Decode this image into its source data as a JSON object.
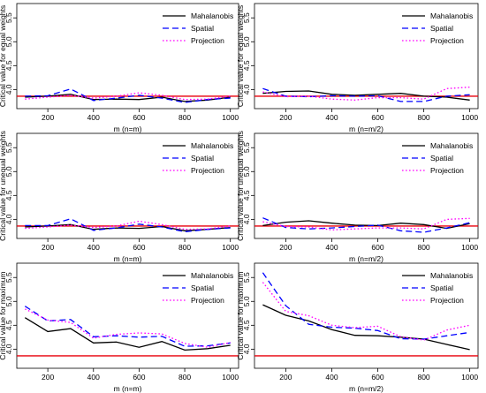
{
  "chart_data": [
    {
      "type": "line",
      "xlabel": "m (n=m)",
      "ylabel": "Critical value for equal weights",
      "x": [
        100,
        200,
        300,
        400,
        500,
        600,
        700,
        800,
        900,
        1000
      ],
      "xlim": [
        100,
        1000
      ],
      "ylim": [
        3.6,
        5.8
      ],
      "xticks": [
        200,
        400,
        600,
        800,
        1000
      ],
      "yticks": [
        4.0,
        4.5,
        5.0,
        5.5
      ],
      "hline": 3.86,
      "hline_color": "#e8000b",
      "legend": "top-right",
      "series": [
        {
          "name": "Mahalanobis",
          "color": "#000000",
          "dash": "solid",
          "values": [
            3.84,
            3.86,
            3.9,
            3.79,
            3.8,
            3.79,
            3.84,
            3.75,
            3.78,
            3.84
          ]
        },
        {
          "name": "Spatial",
          "color": "#0000ff",
          "dash": "dashed",
          "values": [
            3.86,
            3.87,
            4.01,
            3.77,
            3.82,
            3.88,
            3.82,
            3.73,
            3.79,
            3.82
          ]
        },
        {
          "name": "Projection",
          "color": "#ff00ff",
          "dash": "dotted",
          "values": [
            3.8,
            3.84,
            3.88,
            3.82,
            3.86,
            3.93,
            3.88,
            3.79,
            3.8,
            3.86
          ]
        }
      ]
    },
    {
      "type": "line",
      "xlabel": "m (n=m/2)",
      "ylabel": "Critical value for equal weights",
      "x": [
        100,
        200,
        300,
        400,
        500,
        600,
        700,
        800,
        900,
        1000
      ],
      "xlim": [
        100,
        1000
      ],
      "ylim": [
        3.6,
        5.8
      ],
      "xticks": [
        200,
        400,
        600,
        800,
        1000
      ],
      "yticks": [
        4.0,
        4.5,
        5.0,
        5.5
      ],
      "hline": 3.86,
      "hline_color": "#e8000b",
      "legend": "top-right",
      "series": [
        {
          "name": "Mahalanobis",
          "color": "#000000",
          "dash": "solid",
          "values": [
            3.92,
            3.96,
            3.97,
            3.9,
            3.88,
            3.9,
            3.92,
            3.86,
            3.84,
            3.78
          ]
        },
        {
          "name": "Spatial",
          "color": "#0000ff",
          "dash": "dashed",
          "values": [
            4.02,
            3.86,
            3.85,
            3.87,
            3.86,
            3.87,
            3.75,
            3.75,
            3.86,
            3.89
          ]
        },
        {
          "name": "Projection",
          "color": "#ff00ff",
          "dash": "dotted",
          "values": [
            3.95,
            3.85,
            3.86,
            3.8,
            3.78,
            3.83,
            3.83,
            3.8,
            4.02,
            4.05
          ]
        }
      ]
    },
    {
      "type": "line",
      "xlabel": "m (n=m)",
      "ylabel": "Critical value for unequal weights",
      "x": [
        100,
        200,
        300,
        400,
        500,
        600,
        700,
        800,
        900,
        1000
      ],
      "xlim": [
        100,
        1000
      ],
      "ylim": [
        3.6,
        5.8
      ],
      "xticks": [
        200,
        400,
        600,
        800,
        1000
      ],
      "yticks": [
        4.0,
        4.5,
        5.0,
        5.5
      ],
      "hline": 3.86,
      "hline_color": "#e8000b",
      "legend": "top-right",
      "series": [
        {
          "name": "Mahalanobis",
          "color": "#000000",
          "dash": "solid",
          "values": [
            3.84,
            3.86,
            3.89,
            3.79,
            3.82,
            3.81,
            3.85,
            3.76,
            3.79,
            3.83
          ]
        },
        {
          "name": "Spatial",
          "color": "#0000ff",
          "dash": "dashed",
          "values": [
            3.87,
            3.87,
            4.01,
            3.77,
            3.82,
            3.9,
            3.84,
            3.74,
            3.79,
            3.82
          ]
        },
        {
          "name": "Projection",
          "color": "#ff00ff",
          "dash": "dotted",
          "values": [
            3.81,
            3.84,
            3.88,
            3.83,
            3.86,
            3.96,
            3.89,
            3.79,
            3.8,
            3.86
          ]
        }
      ]
    },
    {
      "type": "line",
      "xlabel": "m (n=m/2)",
      "ylabel": "Critical value for unequal weights",
      "x": [
        100,
        200,
        300,
        400,
        500,
        600,
        700,
        800,
        900,
        1000
      ],
      "xlim": [
        100,
        1000
      ],
      "ylim": [
        3.6,
        5.8
      ],
      "xticks": [
        200,
        400,
        600,
        800,
        1000
      ],
      "yticks": [
        4.0,
        4.5,
        5.0,
        5.5
      ],
      "hline": 3.86,
      "hline_color": "#e8000b",
      "legend": "top-right",
      "series": [
        {
          "name": "Mahalanobis",
          "color": "#000000",
          "dash": "solid",
          "values": [
            3.87,
            3.94,
            3.97,
            3.92,
            3.88,
            3.87,
            3.92,
            3.89,
            3.81,
            3.91
          ]
        },
        {
          "name": "Spatial",
          "color": "#0000ff",
          "dash": "dashed",
          "values": [
            4.03,
            3.83,
            3.8,
            3.82,
            3.85,
            3.88,
            3.76,
            3.73,
            3.82,
            3.93
          ]
        },
        {
          "name": "Projection",
          "color": "#ff00ff",
          "dash": "dotted",
          "values": [
            3.95,
            3.85,
            3.84,
            3.78,
            3.8,
            3.82,
            3.82,
            3.8,
            4.0,
            4.02
          ]
        }
      ]
    },
    {
      "type": "line",
      "xlabel": "m (n=m)",
      "ylabel": "Critical value for maximum",
      "x": [
        100,
        200,
        300,
        400,
        500,
        600,
        700,
        800,
        900,
        1000
      ],
      "xlim": [
        100,
        1000
      ],
      "ylim": [
        3.6,
        5.8
      ],
      "xticks": [
        200,
        400,
        600,
        800,
        1000
      ],
      "yticks": [
        4.0,
        4.5,
        5.0,
        5.5
      ],
      "hline": 3.86,
      "hline_color": "#e8000b",
      "legend": "top-right",
      "series": [
        {
          "name": "Mahalanobis",
          "color": "#000000",
          "dash": "solid",
          "values": [
            4.66,
            4.37,
            4.43,
            4.13,
            4.15,
            4.04,
            4.16,
            3.98,
            4.01,
            4.08
          ]
        },
        {
          "name": "Spatial",
          "color": "#0000ff",
          "dash": "dashed",
          "values": [
            4.9,
            4.59,
            4.62,
            4.26,
            4.28,
            4.25,
            4.27,
            4.06,
            4.07,
            4.13
          ]
        },
        {
          "name": "Projection",
          "color": "#ff00ff",
          "dash": "dotted",
          "values": [
            4.84,
            4.61,
            4.56,
            4.23,
            4.31,
            4.34,
            4.32,
            4.12,
            4.04,
            4.14
          ]
        }
      ]
    },
    {
      "type": "line",
      "xlabel": "m (n=m/2)",
      "ylabel": "Critical value for maximum",
      "x": [
        100,
        200,
        300,
        400,
        500,
        600,
        700,
        800,
        900,
        1000
      ],
      "xlim": [
        100,
        1000
      ],
      "ylim": [
        3.6,
        5.8
      ],
      "xticks": [
        200,
        400,
        600,
        800,
        1000
      ],
      "yticks": [
        4.0,
        4.5,
        5.0,
        5.5
      ],
      "hline": 3.86,
      "hline_color": "#e8000b",
      "legend": "top-right",
      "series": [
        {
          "name": "Mahalanobis",
          "color": "#000000",
          "dash": "solid",
          "values": [
            4.93,
            4.71,
            4.59,
            4.41,
            4.29,
            4.28,
            4.25,
            4.21,
            4.1,
            3.99
          ]
        },
        {
          "name": "Spatial",
          "color": "#0000ff",
          "dash": "dashed",
          "values": [
            5.6,
            4.91,
            4.52,
            4.46,
            4.44,
            4.39,
            4.22,
            4.21,
            4.28,
            4.35
          ]
        },
        {
          "name": "Projection",
          "color": "#ff00ff",
          "dash": "dotted",
          "values": [
            5.4,
            4.79,
            4.7,
            4.5,
            4.45,
            4.48,
            4.26,
            4.19,
            4.4,
            4.5
          ]
        }
      ]
    }
  ]
}
